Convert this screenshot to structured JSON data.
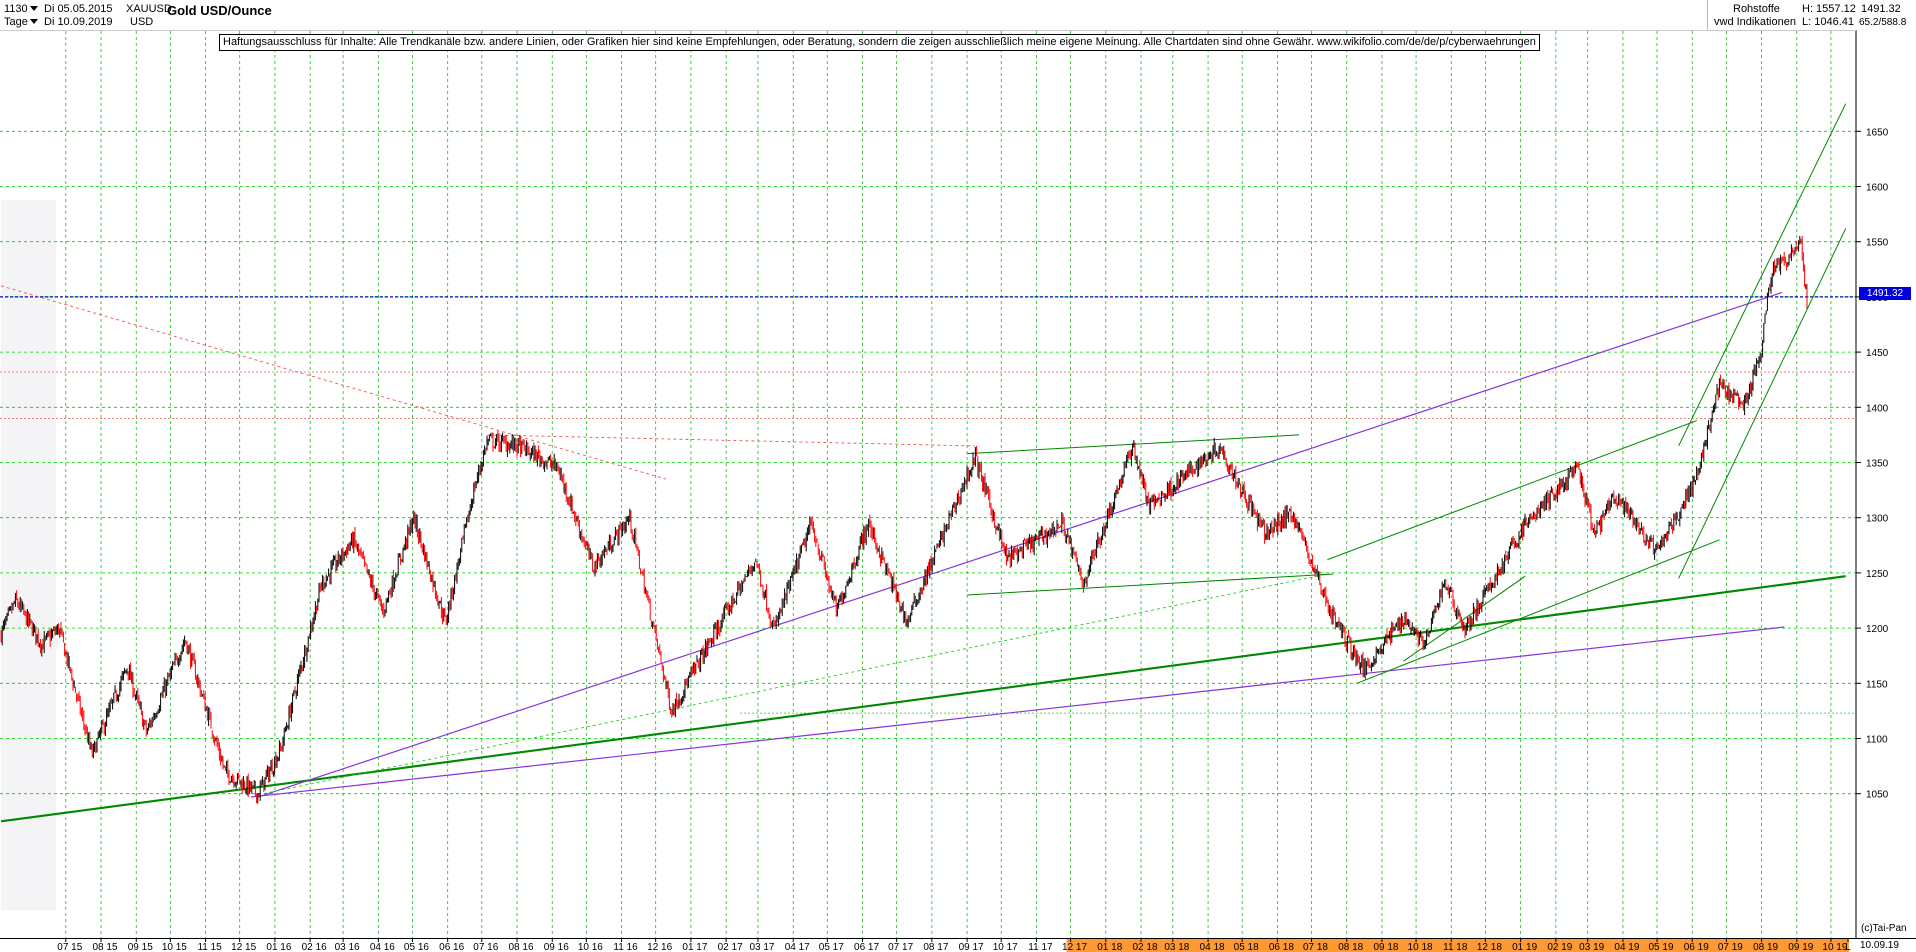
{
  "header": {
    "code": "1130",
    "period": "Tage",
    "date_from": "Di 05.05.2015",
    "date_to": "Di 10.09.2019",
    "symbol": "XAUUSD",
    "currency": "USD",
    "title": "Gold USD/Ounce",
    "category": "Rohstoffe",
    "source": "vwd Indikationen",
    "high_label": "H: 1557.12",
    "low_label": "L: 1046.41",
    "last": "1491.32",
    "range": "65.2/588.8"
  },
  "disclaimer": "Haftungsausschluss für Inhalte: Alle Trendkanäle bzw. andere Linien, oder Grafiken hier sind keine Empfehlungen, oder Beratung, sondern die zeigen ausschließlich meine eigene Meinung. Alle Chartdaten sind ohne Gewähr.  www.wikifolio.com/de/de/p/cyberwaehrungen",
  "credit": "(c)Tai-Pan",
  "end_date": "10.09.19",
  "colors": {
    "up": "#000000",
    "down": "#ff0000",
    "grid": "#00cc00",
    "trend": "#008800",
    "purple": "#8833dd",
    "marker": "#0000dd",
    "axis_highlight": "#ff9933"
  },
  "chart_data": {
    "type": "candlestick",
    "title": "Gold USD/Ounce",
    "ylim": [
      1025,
      1680
    ],
    "y_ticks": [
      1050,
      1100,
      1150,
      1200,
      1250,
      1300,
      1350,
      1400,
      1450,
      1500,
      1550,
      1600,
      1650
    ],
    "x_ticks": [
      "07 15",
      "08 15",
      "09 15",
      "10 15",
      "11 15",
      "12 15",
      "01 16",
      "02 16",
      "03 16",
      "04 16",
      "05 16",
      "06 16",
      "07 16",
      "08 16",
      "09 16",
      "10 16",
      "11 16",
      "12 16",
      "01 17",
      "02 17",
      "03 17",
      "04 17",
      "05 17",
      "06 17",
      "07 17",
      "08 17",
      "09 17",
      "10 17",
      "11 17",
      "12 17",
      "01 18",
      "02 18",
      "03 18",
      "04 18",
      "05 18",
      "06 18",
      "07 18",
      "08 18",
      "09 18",
      "10 18",
      "11 18",
      "12 18",
      "01 19",
      "02 19",
      "03 19",
      "04 19",
      "05 19",
      "06 19",
      "07 19",
      "08 19",
      "09 19",
      "10 19",
      "L"
    ],
    "highlighted_x_ticks": [
      "12 17",
      "01 18",
      "02 18",
      "03 18",
      "04 18",
      "05 18",
      "06 18",
      "07 18",
      "08 18",
      "09 18",
      "10 18",
      "11 18",
      "12 18",
      "01 19",
      "02 19",
      "03 19",
      "04 19",
      "05 19",
      "06 19",
      "07 19",
      "08 19",
      "09 19",
      "10 19"
    ],
    "price_path": [
      [
        "2015-05-05",
        1195
      ],
      [
        "2015-05-18",
        1225
      ],
      [
        "2015-06-10",
        1185
      ],
      [
        "2015-06-25",
        1200
      ],
      [
        "2015-07-24",
        1085
      ],
      [
        "2015-08-24",
        1165
      ],
      [
        "2015-09-10",
        1105
      ],
      [
        "2015-10-14",
        1190
      ],
      [
        "2015-11-18",
        1070
      ],
      [
        "2015-12-17",
        1050
      ],
      [
        "2016-01-06",
        1090
      ],
      [
        "2016-02-11",
        1240
      ],
      [
        "2016-03-10",
        1280
      ],
      [
        "2016-04-05",
        1215
      ],
      [
        "2016-05-02",
        1300
      ],
      [
        "2016-05-30",
        1205
      ],
      [
        "2016-06-24",
        1325
      ],
      [
        "2016-07-06",
        1370
      ],
      [
        "2016-08-02",
        1365
      ],
      [
        "2016-09-06",
        1345
      ],
      [
        "2016-10-07",
        1255
      ],
      [
        "2016-11-08",
        1300
      ],
      [
        "2016-12-15",
        1125
      ],
      [
        "2017-02-27",
        1262
      ],
      [
        "2017-03-15",
        1198
      ],
      [
        "2017-04-17",
        1295
      ],
      [
        "2017-05-09",
        1215
      ],
      [
        "2017-06-06",
        1295
      ],
      [
        "2017-07-10",
        1205
      ],
      [
        "2017-09-08",
        1355
      ],
      [
        "2017-10-06",
        1262
      ],
      [
        "2017-11-24",
        1295
      ],
      [
        "2017-12-12",
        1240
      ],
      [
        "2018-01-25",
        1365
      ],
      [
        "2018-02-08",
        1310
      ],
      [
        "2018-04-11",
        1365
      ],
      [
        "2018-05-21",
        1285
      ],
      [
        "2018-06-14",
        1305
      ],
      [
        "2018-07-19",
        1212
      ],
      [
        "2018-08-16",
        1162
      ],
      [
        "2018-09-20",
        1210
      ],
      [
        "2018-10-09",
        1185
      ],
      [
        "2018-10-26",
        1243
      ],
      [
        "2018-11-13",
        1198
      ],
      [
        "2019-01-04",
        1292
      ],
      [
        "2019-02-20",
        1345
      ],
      [
        "2019-03-07",
        1285
      ],
      [
        "2019-03-25",
        1320
      ],
      [
        "2019-05-01",
        1268
      ],
      [
        "2019-06-04",
        1335
      ],
      [
        "2019-06-25",
        1420
      ],
      [
        "2019-07-16",
        1400
      ],
      [
        "2019-07-31",
        1445
      ],
      [
        "2019-08-07",
        1505
      ],
      [
        "2019-08-13",
        1532
      ],
      [
        "2019-08-23",
        1530
      ],
      [
        "2019-09-04",
        1555
      ],
      [
        "2019-09-10",
        1491
      ]
    ],
    "horizontal_levels_dashed": [
      1500,
      1432,
      1390,
      1123
    ],
    "annotations": {
      "last_price": "1491.32"
    }
  }
}
